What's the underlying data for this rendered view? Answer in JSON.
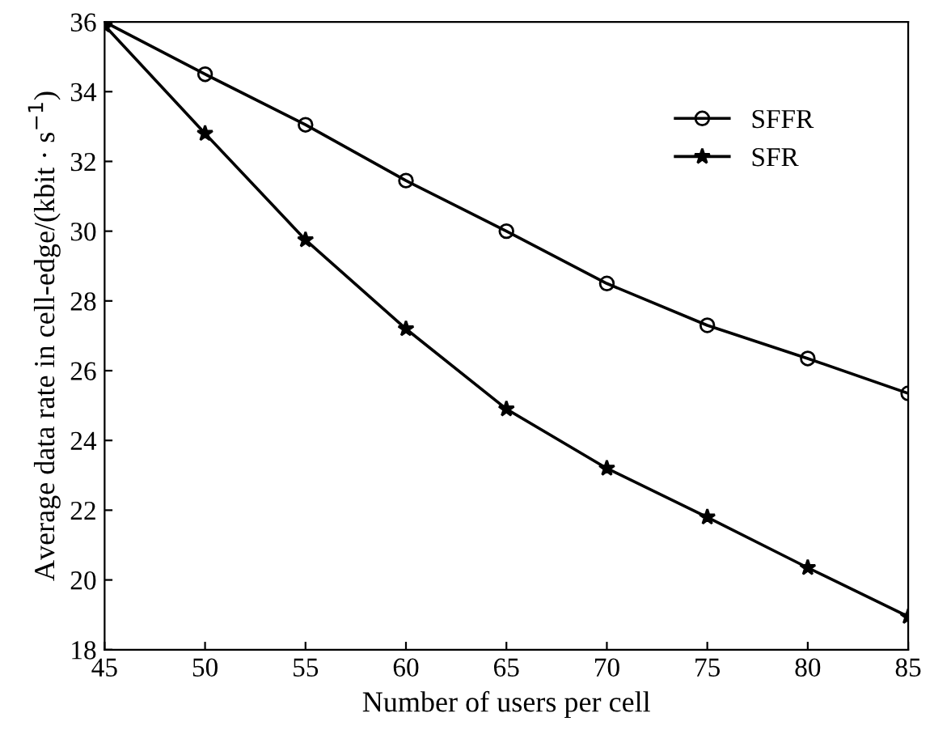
{
  "chart_data": {
    "type": "line",
    "xlabel": "Number of users per cell",
    "ylabel": "Average data rate in cell-edge/(kbit · s$^{−1}$)",
    "x": [
      45,
      50,
      55,
      60,
      65,
      70,
      75,
      80,
      85
    ],
    "series": [
      {
        "name": "SFFR",
        "color": "#000000",
        "marker": "circle",
        "values": [
          36.0,
          34.5,
          33.05,
          31.45,
          30.0,
          28.5,
          27.3,
          26.35,
          25.35
        ]
      },
      {
        "name": "SFR",
        "color": "#000000",
        "marker": "star",
        "values": [
          35.9,
          32.8,
          29.75,
          27.2,
          24.9,
          23.2,
          21.8,
          20.35,
          18.95
        ]
      }
    ],
    "xlim": [
      45,
      85
    ],
    "xticks": [
      45,
      50,
      55,
      60,
      65,
      70,
      75,
      80,
      85
    ],
    "ylim": [
      18,
      36
    ],
    "yticks": [
      18,
      20,
      22,
      24,
      26,
      28,
      30,
      32,
      34,
      36
    ],
    "grid": false,
    "legend": "top right",
    "line_style": "solid"
  }
}
